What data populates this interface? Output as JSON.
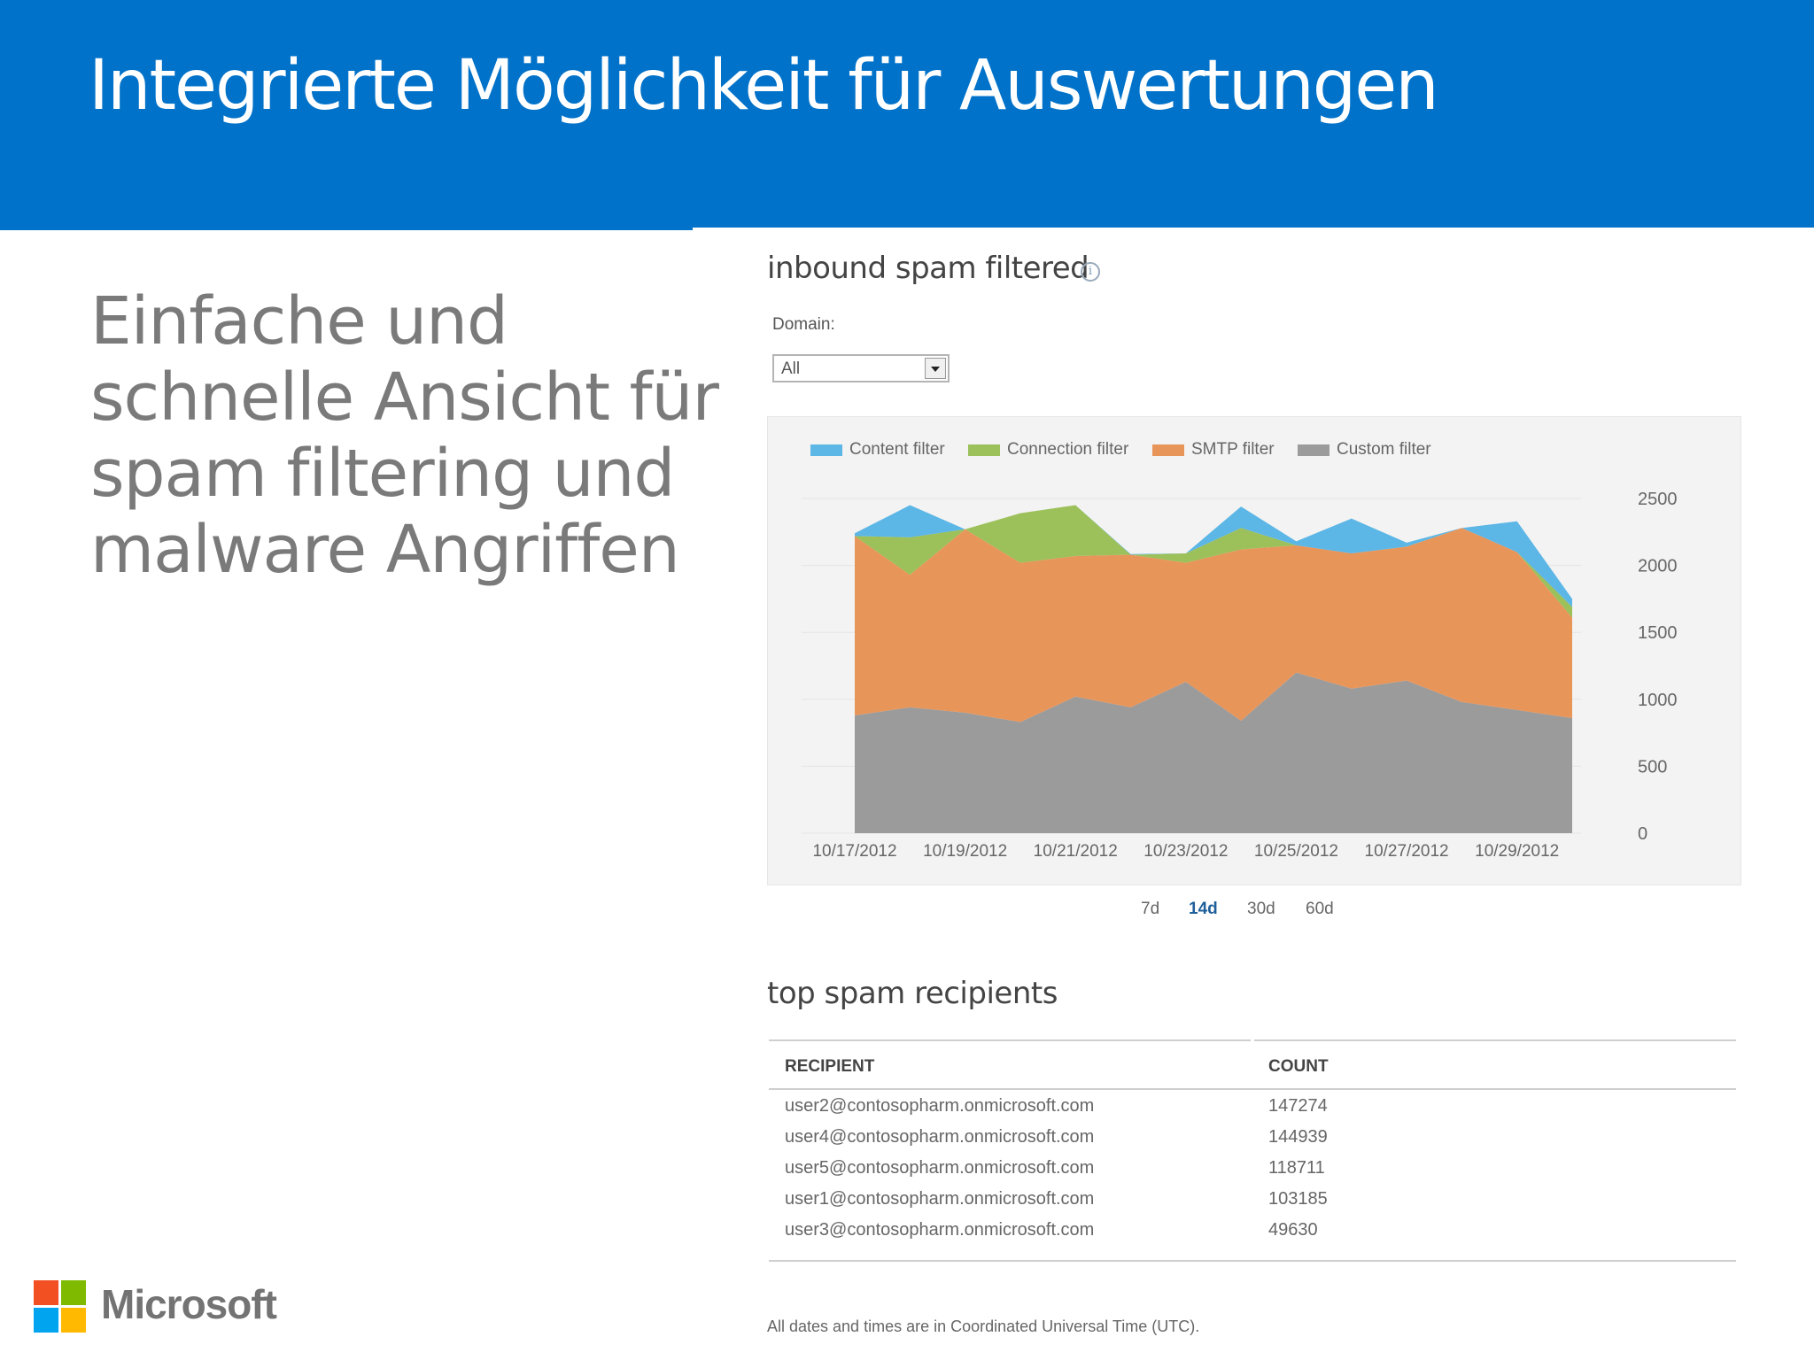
{
  "slide": {
    "title": "Integrierte Möglichkeit für Auswertungen",
    "subtitle_lines": [
      "Einfache und",
      "schnelle Ansicht für",
      "spam filtering und",
      "malware Angriffen"
    ],
    "brand": "Microsoft",
    "colors": {
      "banner": "#0172c9",
      "subtitle": "#7a7a7a"
    }
  },
  "panel": {
    "title": "inbound spam filtered",
    "info_icon": "info-icon",
    "domain_label": "Domain:",
    "domain_value": "All"
  },
  "time_ranges": [
    {
      "label": "7d",
      "active": false
    },
    {
      "label": "14d",
      "active": true
    },
    {
      "label": "30d",
      "active": false
    },
    {
      "label": "60d",
      "active": false
    }
  ],
  "chart_data": {
    "type": "area",
    "stacked": true,
    "grid": true,
    "legend_position": "top-left",
    "y_axis_position": "right",
    "ylim": [
      0,
      2500
    ],
    "yticks": [
      0,
      500,
      1000,
      1500,
      2000,
      2500
    ],
    "x": [
      "10/17/2012",
      "10/18/2012",
      "10/19/2012",
      "10/20/2012",
      "10/21/2012",
      "10/22/2012",
      "10/23/2012",
      "10/24/2012",
      "10/25/2012",
      "10/26/2012",
      "10/27/2012",
      "10/28/2012",
      "10/29/2012",
      "10/30/2012"
    ],
    "xtick_labels": [
      "10/17/2012",
      "10/19/2012",
      "10/21/2012",
      "10/23/2012",
      "10/25/2012",
      "10/27/2012",
      "10/29/2012"
    ],
    "series": [
      {
        "name": "Custom filter",
        "color": "#9b9b9b",
        "values": [
          880,
          940,
          900,
          830,
          1020,
          940,
          1130,
          840,
          1200,
          1080,
          1140,
          980,
          920,
          860
        ]
      },
      {
        "name": "SMTP filter",
        "color": "#e8955a",
        "values": [
          1340,
          990,
          1370,
          1190,
          1050,
          1140,
          890,
          1280,
          950,
          1010,
          1000,
          1300,
          1180,
          750
        ]
      },
      {
        "name": "Connection filter",
        "color": "#9cc05a",
        "values": [
          0,
          280,
          0,
          370,
          380,
          0,
          70,
          160,
          0,
          0,
          0,
          0,
          0,
          80
        ]
      },
      {
        "name": "Content filter",
        "color": "#5cb6e6",
        "values": [
          20,
          240,
          0,
          0,
          0,
          5,
          0,
          160,
          30,
          260,
          30,
          0,
          230,
          60
        ]
      }
    ]
  },
  "recipients": {
    "title": "top spam recipients",
    "headers": [
      "RECIPIENT",
      "COUNT"
    ],
    "rows": [
      [
        "user2@contosopharm.onmicrosoft.com",
        "147274"
      ],
      [
        "user4@contosopharm.onmicrosoft.com",
        "144939"
      ],
      [
        "user5@contosopharm.onmicrosoft.com",
        "118711"
      ],
      [
        "user1@contosopharm.onmicrosoft.com",
        "103185"
      ],
      [
        "user3@contosopharm.onmicrosoft.com",
        "49630"
      ]
    ]
  },
  "footnote": "All dates and times are in Coordinated Universal Time (UTC)."
}
